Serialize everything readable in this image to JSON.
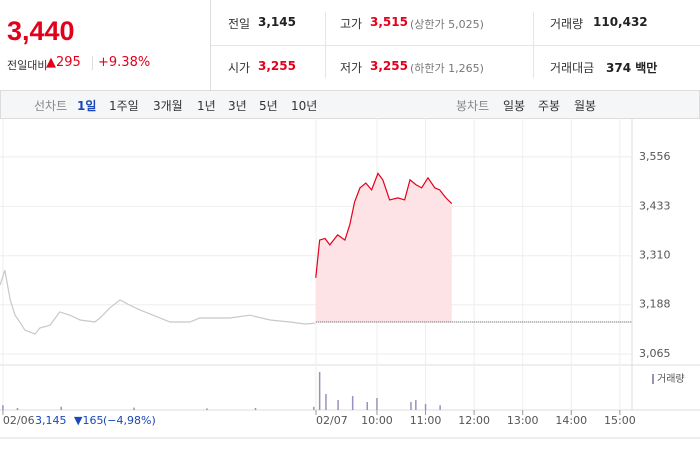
{
  "quote": {
    "price": "3,440",
    "change_label": "전일대비",
    "change": "▲295",
    "change_pct": "+9.38%"
  },
  "stats": [
    {
      "label": "전일",
      "value": "3,145"
    },
    {
      "label": "고가",
      "value": "3,515",
      "note": "(상한가 5,025)"
    },
    {
      "label": "거래량",
      "value": "110,432"
    },
    {
      "label": "시가",
      "value": "3,255"
    },
    {
      "label": "저가",
      "value": "3,255",
      "note": "(하한가 1,265)"
    },
    {
      "label": "거래대금",
      "value": "374 백만"
    }
  ],
  "tabs": {
    "line_title": "선차트",
    "line": [
      "1일",
      "1주일",
      "3개월",
      "1년",
      "3년",
      "5년",
      "10년"
    ],
    "candle_title": "봉차트",
    "candle": [
      "일봉",
      "주봉",
      "월봉"
    ]
  },
  "prev_info": {
    "close": "3,145",
    "change": "▼165",
    "pct": "(−4,98%)"
  },
  "chart_data": {
    "type": "line",
    "xlim": [
      2.24,
      15.25
    ],
    "xticks": [
      {
        "value": 2.3,
        "label": "02/06"
      },
      {
        "value": 8.745,
        "label": "02/07"
      },
      {
        "value": 10,
        "label": "10:00"
      },
      {
        "value": 11,
        "label": "11:00"
      },
      {
        "value": 12,
        "label": "12:00"
      },
      {
        "value": 13,
        "label": "13:00"
      },
      {
        "value": 14,
        "label": "14:00"
      },
      {
        "value": 15,
        "label": "15:00"
      }
    ],
    "ylim": [
      3038,
      3628
    ],
    "yticks": [
      {
        "value": 3065,
        "label": "3,065"
      },
      {
        "value": 3188,
        "label": "3,188"
      },
      {
        "value": 3310,
        "label": "3,310"
      },
      {
        "value": 3433,
        "label": "3,433"
      },
      {
        "value": 3556,
        "label": "3,556"
      }
    ],
    "baseline": 3145,
    "series": [
      {
        "color": "#c8c8c8",
        "x": [
          2.24,
          2.34,
          2.45,
          2.55,
          2.65,
          2.75,
          2.96,
          3.06,
          3.27,
          3.47,
          3.68,
          3.89,
          4.19,
          4.3,
          4.5,
          4.71,
          4.91,
          5.12,
          5.43,
          5.74,
          6.15,
          6.35,
          6.97,
          7.38,
          7.8,
          8.21,
          8.52,
          8.72
        ],
        "values": [
          3237,
          3274,
          3200,
          3162,
          3145,
          3125,
          3115,
          3130,
          3137,
          3170,
          3162,
          3150,
          3145,
          3155,
          3180,
          3200,
          3187,
          3175,
          3160,
          3145,
          3145,
          3155,
          3155,
          3162,
          3150,
          3145,
          3140,
          3142
        ]
      },
      {
        "color": "#e3001b",
        "fill": "#fde3e5",
        "x": [
          8.74,
          8.82,
          8.93,
          9.03,
          9.19,
          9.34,
          9.44,
          9.54,
          9.65,
          9.77,
          9.89,
          10.02,
          10.12,
          10.26,
          10.43,
          10.57,
          10.68,
          10.8,
          10.92,
          11.05,
          11.19,
          11.29,
          11.42,
          11.54
        ],
        "values": [
          3255,
          3349,
          3353,
          3337,
          3362,
          3349,
          3387,
          3444,
          3479,
          3491,
          3474,
          3515,
          3499,
          3449,
          3454,
          3449,
          3499,
          3487,
          3479,
          3504,
          3479,
          3474,
          3454,
          3440
        ]
      }
    ],
    "volume": {
      "legend": "거래량",
      "color": "#9b8fc2",
      "vlim": [
        0,
        100
      ],
      "x": [
        2.3,
        2.6,
        3.5,
        5.0,
        6.5,
        7.5,
        8.7,
        8.82,
        8.95,
        9.2,
        9.5,
        9.8,
        10.0,
        10.7,
        10.8,
        11.0,
        11.3
      ],
      "values": [
        12,
        5,
        8,
        6,
        4,
        5,
        8,
        95,
        40,
        25,
        35,
        20,
        30,
        20,
        25,
        15,
        12
      ]
    }
  }
}
